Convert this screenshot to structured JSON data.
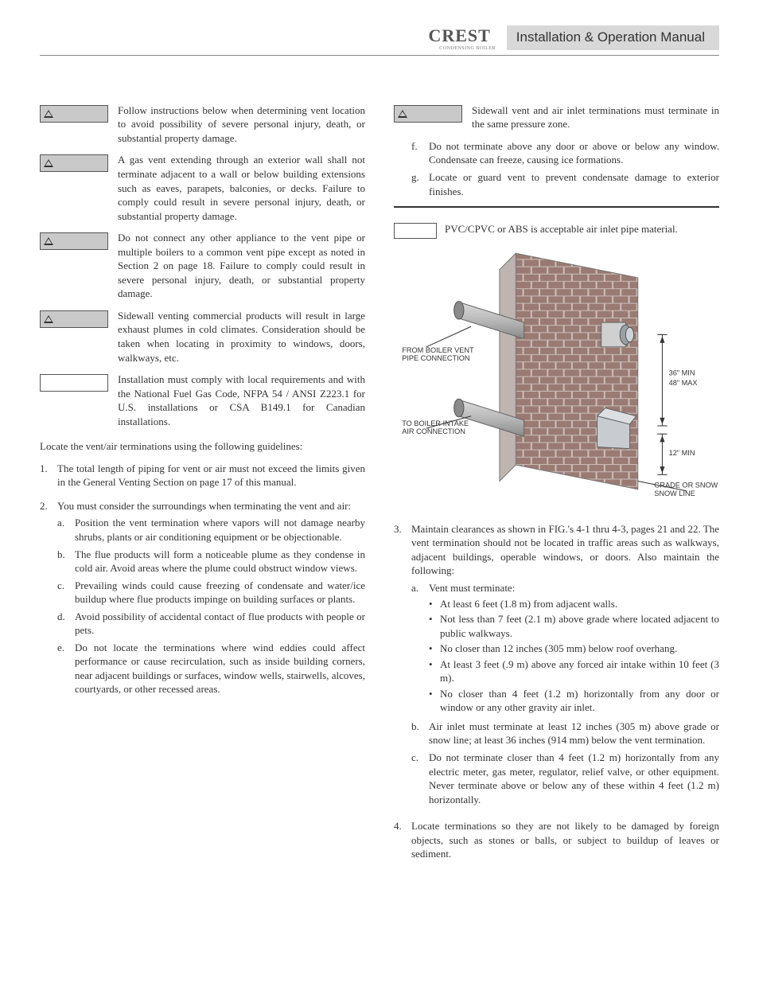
{
  "header": {
    "brand": "CREST",
    "brand_sub": "CONDENSING BOILER",
    "title": "Installation & Operation Manual"
  },
  "left": {
    "warnings": [
      {
        "type": "warning",
        "text": "Follow instructions below when determining vent location to avoid possibility of severe personal injury, death, or substantial property damage."
      },
      {
        "type": "warning",
        "text": "A gas vent extending through an exterior wall shall not terminate adjacent to a wall or below building extensions such as eaves, parapets, balconies, or decks.  Failure to comply could result in severe personal injury, death, or substantial property damage."
      },
      {
        "type": "warning",
        "text": "Do not connect any other appliance to the vent pipe or multiple boilers to a common vent pipe except as noted in Section 2 on page 18.  Failure to comply could result in severe personal injury, death, or substantial property damage."
      },
      {
        "type": "warning",
        "text": "Sidewall venting commercial products will result in large exhaust plumes in cold climates.  Consideration should be taken when locating in proximity to windows, doors, walkways, etc."
      },
      {
        "type": "notice",
        "text": "Installation must comply with local requirements and with the National Fuel Gas Code, NFPA 54 / ANSI Z223.1 for U.S. installations or CSA B149.1 for Canadian installations."
      }
    ],
    "intro": "Locate the vent/air terminations using the following guidelines:",
    "items": [
      {
        "n": "1.",
        "text": "The total length of piping for vent or air must not exceed the limits given in the General Venting Section on page 17 of this manual."
      },
      {
        "n": "2.",
        "text": "You must consider the surroundings when terminating the vent and air:",
        "sub": [
          {
            "n": "a.",
            "text": "Position the vent termination where vapors will not damage nearby shrubs, plants or air conditioning equipment or be objectionable."
          },
          {
            "n": "b.",
            "text": "The flue products will form a noticeable plume as they condense in cold air.  Avoid areas where the plume could obstruct window views."
          },
          {
            "n": "c.",
            "text": "Prevailing winds could cause freezing of condensate and water/ice buildup where flue products impinge on building surfaces or plants."
          },
          {
            "n": "d.",
            "text": "Avoid possibility of accidental contact of flue products with people or pets."
          },
          {
            "n": "e.",
            "text": "Do not locate the terminations where wind eddies could affect performance or cause recirculation, such as inside building corners, near adjacent buildings or surfaces, window wells, stairwells, alcoves, courtyards, or other recessed areas."
          }
        ]
      }
    ]
  },
  "right": {
    "warnings": [
      {
        "type": "warning",
        "text": "Sidewall vent and air inlet terminations must terminate in the same pressure zone."
      }
    ],
    "sub_top": [
      {
        "n": "f.",
        "text": "Do not terminate above any door or above or below any window.  Condensate can freeze, causing ice formations."
      },
      {
        "n": "g.",
        "text": "Locate or guard vent to prevent condensate damage to exterior finishes."
      }
    ],
    "note": "PVC/CPVC or ABS is acceptable air inlet pipe material.",
    "figure": {
      "label_vent": "FROM BOILER VENT PIPE CONNECTION",
      "label_intake": "TO BOILER INTAKE AIR CONNECTION",
      "dim_top": "36\" MIN",
      "dim_top2": "48\" MAX",
      "dim_bottom": "12\" MIN",
      "label_grade": "GRADE OR SNOW LINE",
      "colors": {
        "brick": "#9a7a72",
        "mortar": "#c8beb9",
        "pipe": "#b8b8b8",
        "pipe_dark": "#8a8a8a",
        "cap": "#9aa0a6"
      }
    },
    "items": [
      {
        "n": "3.",
        "text": "Maintain clearances as shown in FIG.'s 4-1 thru 4-3, pages 21 and 22.  The vent termination should not be located in traffic areas such as walkways, adjacent buildings, operable windows, or doors.  Also maintain the following:",
        "sub": [
          {
            "n": "a.",
            "text": "Vent must terminate:",
            "bullets": [
              "At least 6 feet (1.8 m) from adjacent walls.",
              "Not less than 7 feet (2.1 m) above grade where located adjacent to public walkways.",
              "No closer than 12 inches (305 mm) below roof overhang.",
              "At least 3 feet (.9 m) above any forced air intake within 10 feet (3 m).",
              "No closer than 4 feet (1.2 m) horizontally from any door or window or any other gravity air inlet."
            ]
          },
          {
            "n": "b.",
            "text": "Air inlet must terminate at least 12 inches (305 m) above grade or snow line; at least 36 inches (914 mm) below the vent termination."
          },
          {
            "n": "c.",
            "text": "Do not terminate closer than 4 feet (1.2 m) horizontally from any electric meter, gas meter, regulator, relief valve, or other equipment.  Never terminate above or below any of these within 4 feet (1.2 m) horizontally."
          }
        ]
      },
      {
        "n": "4.",
        "text": "Locate terminations so they are not likely to be damaged by foreign objects, such as stones or balls, or subject to buildup of leaves or sediment."
      }
    ]
  }
}
